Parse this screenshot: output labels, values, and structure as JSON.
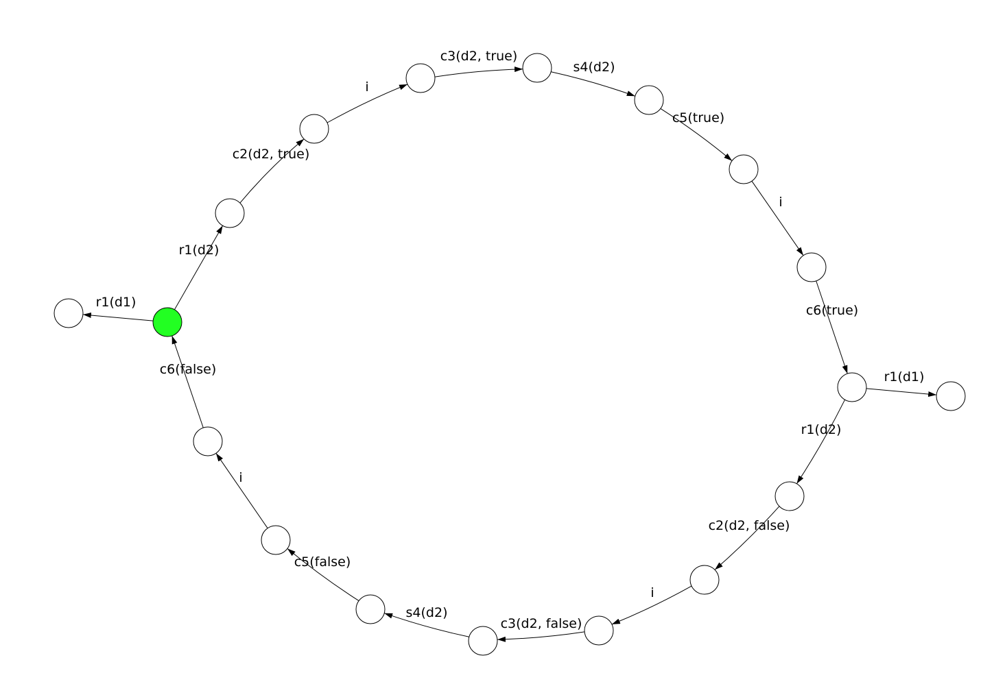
{
  "diagram": {
    "type": "state-transition-graph",
    "colors": {
      "background": "#ffffff",
      "node_fill": "#ffffff",
      "node_stroke": "#000000",
      "initial_fill": "#22ff22",
      "edge": "#000000"
    },
    "nodes": [
      {
        "id": "n0",
        "initial": true
      },
      {
        "id": "n1"
      },
      {
        "id": "n2"
      },
      {
        "id": "n3"
      },
      {
        "id": "n4"
      },
      {
        "id": "n5"
      },
      {
        "id": "n6"
      },
      {
        "id": "n7"
      },
      {
        "id": "n8"
      },
      {
        "id": "n9"
      },
      {
        "id": "n10"
      },
      {
        "id": "n11"
      },
      {
        "id": "n12"
      },
      {
        "id": "n13"
      },
      {
        "id": "n14"
      },
      {
        "id": "n15"
      },
      {
        "id": "n16"
      },
      {
        "id": "n17"
      },
      {
        "id": "n18"
      }
    ],
    "edges": [
      {
        "from": "n0",
        "to": "n1",
        "label": "r1(d1)"
      },
      {
        "from": "n0",
        "to": "n2",
        "label": "r1(d2)"
      },
      {
        "from": "n2",
        "to": "n3",
        "label": "c2(d2, true)"
      },
      {
        "from": "n3",
        "to": "n4",
        "label": "i"
      },
      {
        "from": "n4",
        "to": "n5",
        "label": "c3(d2, true)"
      },
      {
        "from": "n5",
        "to": "n6",
        "label": "s4(d2)"
      },
      {
        "from": "n6",
        "to": "n7",
        "label": "c5(true)"
      },
      {
        "from": "n7",
        "to": "n8",
        "label": "i"
      },
      {
        "from": "n8",
        "to": "n9",
        "label": "c6(true)"
      },
      {
        "from": "n9",
        "to": "n10",
        "label": "r1(d1)"
      },
      {
        "from": "n9",
        "to": "n11",
        "label": "r1(d2)"
      },
      {
        "from": "n11",
        "to": "n12",
        "label": "c2(d2, false)"
      },
      {
        "from": "n12",
        "to": "n13",
        "label": "i"
      },
      {
        "from": "n13",
        "to": "n14",
        "label": "c3(d2, false)"
      },
      {
        "from": "n14",
        "to": "n15",
        "label": "s4(d2)"
      },
      {
        "from": "n15",
        "to": "n16",
        "label": "c5(false)"
      },
      {
        "from": "n16",
        "to": "n17",
        "label": "i"
      },
      {
        "from": "n17",
        "to": "n0",
        "label": "c6(false)"
      }
    ]
  }
}
